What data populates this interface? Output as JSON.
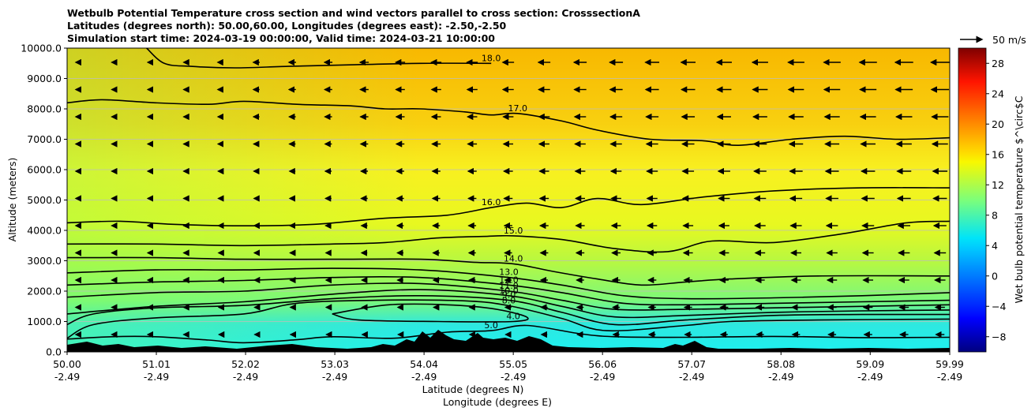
{
  "chart_data": {
    "type": "heatmap",
    "title_lines": [
      "Wetbulb Potential Temperature cross section and wind vectors parallel to cross section: CrosssectionA",
      "Latitudes (degrees north): 50.00,60.00, Longitudes (degrees east): -2.50,-2.50",
      "Simulation start time: 2024-03-19 00:00:00, Valid time: 2024-03-21 10:00:00"
    ],
    "ylabel": "Altitude (meters)",
    "xlabel_lat": "Latitude (degrees N)",
    "xlabel_lon": "Longitude (degrees E)",
    "ylim": [
      0,
      10000
    ],
    "xlim": [
      50.0,
      59.99
    ],
    "y_ticks": [
      0,
      1000,
      2000,
      3000,
      4000,
      5000,
      6000,
      7000,
      8000,
      9000,
      10000
    ],
    "y_tick_labels": [
      "0.0",
      "1000.0",
      "2000.0",
      "3000.0",
      "4000.0",
      "5000.0",
      "6000.0",
      "7000.0",
      "8000.0",
      "9000.0",
      "10000.0"
    ],
    "x_ticks": [
      50.0,
      51.01,
      52.02,
      53.03,
      54.04,
      55.05,
      56.06,
      57.07,
      58.08,
      59.09,
      59.99
    ],
    "x_tick_lat_labels": [
      "50.00",
      "51.01",
      "52.02",
      "53.03",
      "54.04",
      "55.05",
      "56.06",
      "57.07",
      "58.08",
      "59.09",
      "59.99"
    ],
    "x_tick_lon_labels": [
      "-2.49",
      "-2.49",
      "-2.49",
      "-2.49",
      "-2.49",
      "-2.49",
      "-2.49",
      "-2.49",
      "-2.49",
      "-2.49",
      "-2.49"
    ],
    "grid": "horizontal",
    "colorbar": {
      "label": "Wet bulb potential temperature $^\\circ$C",
      "vmin": -10,
      "vmax": 30,
      "ticks": [
        -8,
        -4,
        0,
        4,
        8,
        12,
        16,
        20,
        24,
        28
      ],
      "tick_labels": [
        "−8",
        "−4",
        "0",
        "4",
        "8",
        "12",
        "16",
        "20",
        "24",
        "28"
      ],
      "colormap": "jet"
    },
    "quiver_key": "50 m/s",
    "contour_labels": [
      "17.0",
      "16.0",
      "15.0",
      "14.0",
      "13.0",
      "12.0",
      "11.0",
      "10.0",
      "9.0",
      "8.0",
      "5.0",
      "4.0",
      "18.0"
    ],
    "contours": [
      {
        "level": 4,
        "label": "4.0",
        "points": [
          [
            53.0,
            1250
          ],
          [
            53.6,
            1540
          ],
          [
            54.2,
            1560
          ],
          [
            54.8,
            1430
          ],
          [
            55.2,
            1150
          ],
          [
            55.05,
            1000
          ],
          [
            54.2,
            1000
          ],
          [
            53.3,
            1050
          ],
          [
            53.0,
            1250
          ]
        ]
      },
      {
        "level": 5,
        "label": "5.0",
        "points": [
          [
            50.0,
            420
          ],
          [
            50.5,
            500
          ],
          [
            51.0,
            500
          ],
          [
            51.6,
            390
          ],
          [
            52.0,
            300
          ],
          [
            52.6,
            400
          ],
          [
            53.0,
            500
          ],
          [
            53.7,
            450
          ],
          [
            54.3,
            650
          ],
          [
            54.8,
            700
          ],
          [
            55.2,
            870
          ],
          [
            55.8,
            600
          ],
          [
            56.2,
            500
          ],
          [
            57.0,
            480
          ],
          [
            58.0,
            510
          ],
          [
            59.0,
            470
          ],
          [
            59.99,
            480
          ]
        ]
      },
      {
        "level": 8,
        "label": "8.0",
        "points": [
          [
            50.0,
            450
          ],
          [
            50.3,
            900
          ],
          [
            51.0,
            1120
          ],
          [
            52.0,
            1250
          ],
          [
            52.6,
            1600
          ],
          [
            53.5,
            1700
          ],
          [
            54.5,
            1680
          ],
          [
            55.0,
            1520
          ],
          [
            55.6,
            1100
          ],
          [
            56.1,
            700
          ],
          [
            57.0,
            870
          ],
          [
            57.5,
            1000
          ],
          [
            58.5,
            1050
          ],
          [
            59.99,
            1080
          ]
        ]
      },
      {
        "level": 9,
        "label": "9.0",
        "points": [
          [
            50.0,
            900
          ],
          [
            50.3,
            1250
          ],
          [
            51.0,
            1450
          ],
          [
            52.0,
            1530
          ],
          [
            53.0,
            1750
          ],
          [
            54.0,
            1850
          ],
          [
            55.0,
            1700
          ],
          [
            55.6,
            1300
          ],
          [
            56.2,
            900
          ],
          [
            57.0,
            1050
          ],
          [
            58.0,
            1200
          ],
          [
            59.0,
            1230
          ],
          [
            59.99,
            1230
          ]
        ]
      },
      {
        "level": 10,
        "label": "10.0",
        "points": [
          [
            50.0,
            1250
          ],
          [
            51.0,
            1500
          ],
          [
            52.0,
            1650
          ],
          [
            53.0,
            1900
          ],
          [
            54.0,
            2050
          ],
          [
            55.0,
            1850
          ],
          [
            55.6,
            1500
          ],
          [
            56.2,
            1150
          ],
          [
            57.0,
            1200
          ],
          [
            58.0,
            1300
          ],
          [
            59.0,
            1350
          ],
          [
            59.99,
            1380
          ]
        ]
      },
      {
        "level": 11,
        "label": "11.0",
        "points": [
          [
            50.0,
            1800
          ],
          [
            51.0,
            1950
          ],
          [
            52.0,
            2000
          ],
          [
            53.0,
            2200
          ],
          [
            54.0,
            2250
          ],
          [
            55.0,
            2000
          ],
          [
            55.6,
            1700
          ],
          [
            56.2,
            1400
          ],
          [
            57.0,
            1400
          ],
          [
            58.0,
            1450
          ],
          [
            59.0,
            1500
          ],
          [
            59.99,
            1550
          ]
        ]
      },
      {
        "level": 12,
        "label": "12.0",
        "points": [
          [
            50.0,
            2200
          ],
          [
            51.0,
            2300
          ],
          [
            52.0,
            2350
          ],
          [
            53.0,
            2450
          ],
          [
            54.0,
            2450
          ],
          [
            55.0,
            2200
          ],
          [
            55.6,
            1950
          ],
          [
            56.3,
            1600
          ],
          [
            57.0,
            1550
          ],
          [
            58.0,
            1600
          ],
          [
            59.0,
            1650
          ],
          [
            59.99,
            1700
          ]
        ]
      },
      {
        "level": 13,
        "label": "13.0",
        "points": [
          [
            50.0,
            2600
          ],
          [
            51.0,
            2700
          ],
          [
            52.0,
            2700
          ],
          [
            53.0,
            2750
          ],
          [
            54.0,
            2700
          ],
          [
            55.0,
            2450
          ],
          [
            55.6,
            2200
          ],
          [
            56.3,
            1850
          ],
          [
            57.0,
            1750
          ],
          [
            58.0,
            1780
          ],
          [
            59.0,
            1850
          ],
          [
            59.99,
            1950
          ]
        ]
      },
      {
        "level": 14,
        "label": "14.0",
        "points": [
          [
            50.0,
            3100
          ],
          [
            51.0,
            3100
          ],
          [
            52.0,
            3050
          ],
          [
            53.0,
            3050
          ],
          [
            54.0,
            3050
          ],
          [
            54.6,
            2950
          ],
          [
            55.05,
            2900
          ],
          [
            55.5,
            2650
          ],
          [
            56.0,
            2400
          ],
          [
            56.5,
            2200
          ],
          [
            57.0,
            2300
          ],
          [
            57.5,
            2400
          ],
          [
            58.5,
            2500
          ],
          [
            59.99,
            2500
          ]
        ]
      },
      {
        "level": 15,
        "label": "15.0",
        "points": [
          [
            50.0,
            3550
          ],
          [
            51.0,
            3550
          ],
          [
            52.0,
            3500
          ],
          [
            53.0,
            3550
          ],
          [
            53.6,
            3600
          ],
          [
            54.2,
            3750
          ],
          [
            54.7,
            3800
          ],
          [
            55.05,
            3820
          ],
          [
            55.6,
            3700
          ],
          [
            56.2,
            3400
          ],
          [
            56.8,
            3300
          ],
          [
            57.3,
            3650
          ],
          [
            58.0,
            3600
          ],
          [
            58.8,
            3900
          ],
          [
            59.5,
            4250
          ],
          [
            59.99,
            4300
          ]
        ]
      },
      {
        "level": 16,
        "label": "16.0",
        "points": [
          [
            50.0,
            4250
          ],
          [
            50.6,
            4300
          ],
          [
            51.2,
            4200
          ],
          [
            52.0,
            4150
          ],
          [
            52.8,
            4200
          ],
          [
            53.6,
            4400
          ],
          [
            54.3,
            4500
          ],
          [
            54.8,
            4750
          ],
          [
            55.2,
            4900
          ],
          [
            55.6,
            4750
          ],
          [
            56.0,
            5050
          ],
          [
            56.5,
            4850
          ],
          [
            57.2,
            5100
          ],
          [
            58.0,
            5300
          ],
          [
            59.0,
            5400
          ],
          [
            59.99,
            5400
          ]
        ]
      },
      {
        "level": 17,
        "label": "17.0",
        "points": [
          [
            50.0,
            8200
          ],
          [
            50.4,
            8300
          ],
          [
            51.0,
            8200
          ],
          [
            51.6,
            8150
          ],
          [
            52.0,
            8250
          ],
          [
            52.6,
            8150
          ],
          [
            53.2,
            8100
          ],
          [
            53.6,
            8000
          ],
          [
            54.0,
            8000
          ],
          [
            54.5,
            7900
          ],
          [
            54.8,
            7800
          ],
          [
            55.1,
            7850
          ],
          [
            55.6,
            7600
          ],
          [
            56.0,
            7300
          ],
          [
            56.6,
            7000
          ],
          [
            57.2,
            6950
          ],
          [
            57.6,
            6800
          ],
          [
            58.2,
            7000
          ],
          [
            58.8,
            7100
          ],
          [
            59.4,
            7000
          ],
          [
            59.99,
            7050
          ]
        ]
      },
      {
        "level": 18,
        "label": "18.0",
        "points": [
          [
            50.9,
            10000
          ],
          [
            51.1,
            9500
          ],
          [
            51.4,
            9400
          ],
          [
            51.9,
            9350
          ],
          [
            52.5,
            9400
          ],
          [
            53.2,
            9450
          ],
          [
            54.0,
            9500
          ],
          [
            54.8,
            9500
          ]
        ]
      }
    ]
  }
}
